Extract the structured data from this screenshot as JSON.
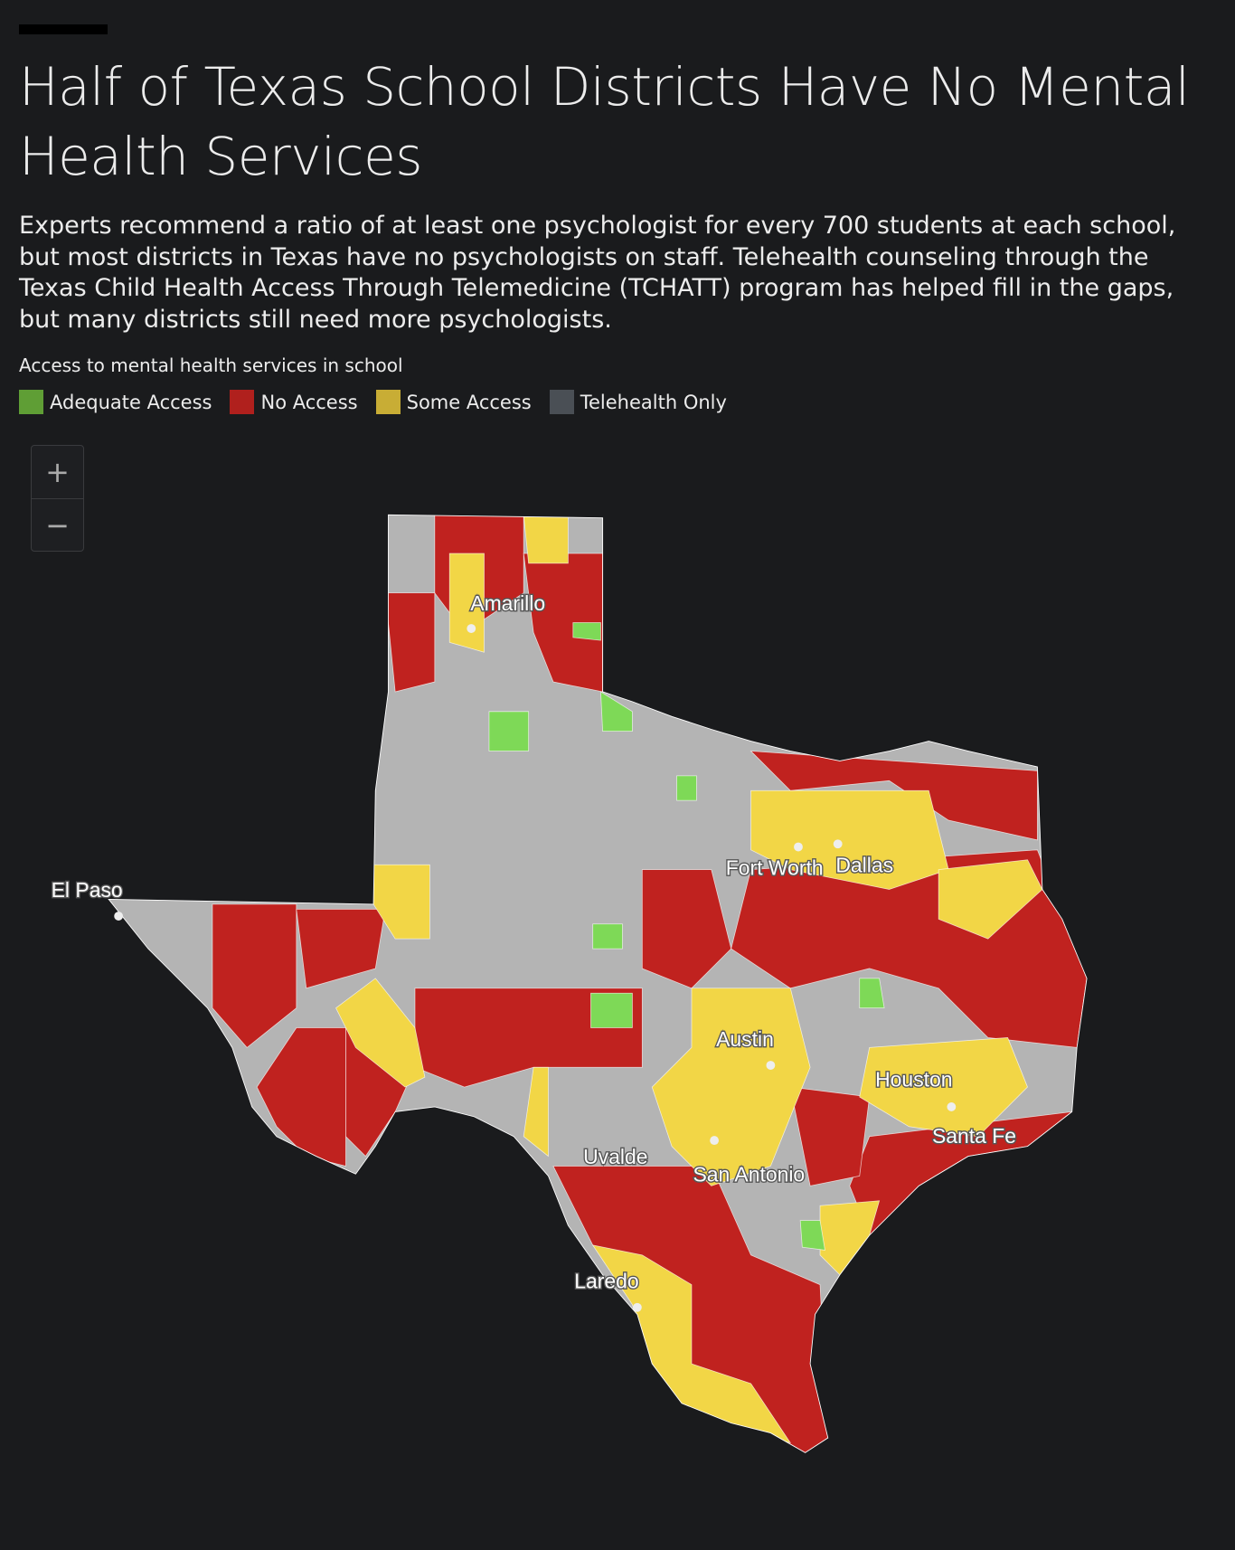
{
  "header": {
    "title": "Half of Texas School Districts Have No Mental Health Services",
    "description": "Experts recommend a ratio of at least one psychologist for every 700 students at each school, but most districts in Texas have no psychologists on staff. Telehealth counseling through the Texas Child Health Access Through Telemedicine (TCHATT) program has helped fill in the gaps, but many districts still need more psychologists."
  },
  "legend": {
    "title": "Access to mental health services in school",
    "items": [
      {
        "label": "Adequate Access",
        "color": "#5f9e35"
      },
      {
        "label": "No Access",
        "color": "#b0201d"
      },
      {
        "label": "Some Access",
        "color": "#c8ad35"
      },
      {
        "label": "Telehealth Only",
        "color": "#4a4f55"
      }
    ]
  },
  "zoom": {
    "in": "+",
    "out": "−"
  },
  "map": {
    "cities": [
      "Amarillo",
      "El Paso",
      "Fort Worth",
      "Dallas",
      "Austin",
      "Houston",
      "Santa Fe",
      "Uvalde",
      "San Antonio",
      "Laredo"
    ]
  }
}
